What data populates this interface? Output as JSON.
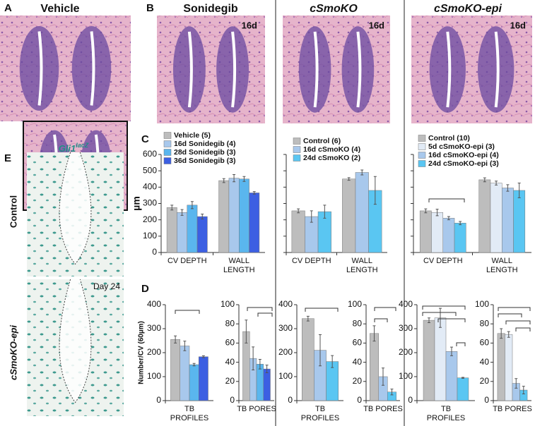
{
  "panels": {
    "a_letter": "A",
    "a_title": "Vehicle",
    "b_letter": "B",
    "b_titles": [
      "Sonidegib",
      "cSmoKO",
      "cSmoKO-epi"
    ],
    "b_days": [
      "16d",
      "16d",
      "16d"
    ],
    "c_letter": "C",
    "d_letter": "D",
    "e_letter": "E",
    "e_title": "Gli1",
    "e_title_sup": "lacZ",
    "e_rows": [
      "Control",
      "cSmoKO-epi"
    ],
    "e_day": "Day 24"
  },
  "chart_data": [
    {
      "type": "bar",
      "ylabel": "µm",
      "categories": [
        "CV DEPTH",
        "WALL LENGTH"
      ],
      "ylim": [
        0,
        600
      ],
      "yticks": [
        0,
        100,
        200,
        300,
        400,
        500,
        600
      ],
      "series": [
        {
          "name": "Vehicle (5)",
          "color": "#bdbdbd",
          "values": [
            275,
            440
          ],
          "errors": [
            15,
            12
          ]
        },
        {
          "name": "16d Sonidegib (4)",
          "color": "#a8c8ec",
          "values": [
            245,
            455
          ],
          "errors": [
            18,
            22
          ]
        },
        {
          "name": "28d Sonidegib (3)",
          "color": "#5ab6ee",
          "values": [
            290,
            450
          ],
          "errors": [
            22,
            15
          ]
        },
        {
          "name": "36d Sonidegib (3)",
          "color": "#3c5fe2",
          "values": [
            220,
            365
          ],
          "errors": [
            15,
            8
          ]
        }
      ]
    },
    {
      "type": "bar",
      "categories": [
        "CV DEPTH",
        "WALL LENGTH"
      ],
      "ylim": [
        0,
        600
      ],
      "yticks": [
        0,
        100,
        200,
        300,
        400,
        500,
        600
      ],
      "series": [
        {
          "name": "Control (6)",
          "color": "#bdbdbd",
          "values": [
            255,
            450
          ],
          "errors": [
            12,
            8
          ]
        },
        {
          "name": "16d cSmoKO (4)",
          "color": "#a8c8ec",
          "values": [
            220,
            490
          ],
          "errors": [
            35,
            15
          ]
        },
        {
          "name": "24d cSmoKO (2)",
          "color": "#5ac6f2",
          "values": [
            250,
            380
          ],
          "errors": [
            40,
            85
          ]
        }
      ]
    },
    {
      "type": "bar",
      "categories": [
        "CV DEPTH",
        "WALL LENGTH"
      ],
      "ylim": [
        0,
        600
      ],
      "yticks": [
        0,
        100,
        200,
        300,
        400,
        500,
        600
      ],
      "series": [
        {
          "name": "Control (10)",
          "color": "#bdbdbd",
          "values": [
            255,
            445
          ],
          "errors": [
            12,
            12
          ]
        },
        {
          "name": "5d cSmoKO-epi (3)",
          "color": "#e2ebf6",
          "values": [
            245,
            425
          ],
          "errors": [
            20,
            12
          ]
        },
        {
          "name": "16d cSmoKO-epi (4)",
          "color": "#a8c8ec",
          "values": [
            210,
            395
          ],
          "errors": [
            10,
            20
          ]
        },
        {
          "name": "24d cSmoKO-epi (3)",
          "color": "#5ac6f2",
          "values": [
            180,
            380
          ],
          "errors": [
            10,
            45
          ]
        }
      ]
    },
    {
      "type": "bar",
      "ylabel": "Number/CV (60µm)",
      "categories": [
        "TB PROFILES"
      ],
      "ylim": [
        0,
        400
      ],
      "yticks": [
        0,
        100,
        200,
        300,
        400
      ],
      "series": [
        {
          "color": "#bdbdbd",
          "values": [
            255
          ],
          "errors": [
            15
          ]
        },
        {
          "color": "#a8c8ec",
          "values": [
            228
          ],
          "errors": [
            20
          ]
        },
        {
          "color": "#5ab6ee",
          "values": [
            150
          ],
          "errors": [
            5
          ]
        },
        {
          "color": "#3c5fe2",
          "values": [
            183
          ],
          "errors": [
            4
          ]
        }
      ]
    },
    {
      "type": "bar",
      "categories": [
        "TB PORES"
      ],
      "ylim": [
        0,
        100
      ],
      "yticks": [
        0,
        20,
        40,
        60,
        80,
        100
      ],
      "series": [
        {
          "color": "#bdbdbd",
          "values": [
            72
          ],
          "errors": [
            12
          ]
        },
        {
          "color": "#a8c8ec",
          "values": [
            44
          ],
          "errors": [
            12
          ]
        },
        {
          "color": "#5ab6ee",
          "values": [
            38
          ],
          "errors": [
            5
          ]
        },
        {
          "color": "#3c5fe2",
          "values": [
            33
          ],
          "errors": [
            4
          ]
        }
      ]
    },
    {
      "type": "bar",
      "categories": [
        "TB PROFILES"
      ],
      "ylim": [
        0,
        400
      ],
      "yticks": [
        0,
        100,
        200,
        300,
        400
      ],
      "series": [
        {
          "color": "#bdbdbd",
          "values": [
            342
          ],
          "errors": [
            10
          ]
        },
        {
          "color": "#a8c8ec",
          "values": [
            210
          ],
          "errors": [
            65
          ]
        },
        {
          "color": "#5ac6f2",
          "values": [
            163
          ],
          "errors": [
            25
          ]
        }
      ]
    },
    {
      "type": "bar",
      "categories": [
        "TB PORES"
      ],
      "ylim": [
        0,
        100
      ],
      "yticks": [
        0,
        20,
        40,
        60,
        80,
        100
      ],
      "series": [
        {
          "color": "#bdbdbd",
          "values": [
            70
          ],
          "errors": [
            8
          ]
        },
        {
          "color": "#a8c8ec",
          "values": [
            25
          ],
          "errors": [
            9
          ]
        },
        {
          "color": "#5ac6f2",
          "values": [
            9
          ],
          "errors": [
            3
          ]
        }
      ]
    },
    {
      "type": "bar",
      "categories": [
        "TB PROFILES"
      ],
      "ylim": [
        0,
        400
      ],
      "yticks": [
        0,
        100,
        200,
        300,
        400
      ],
      "series": [
        {
          "color": "#bdbdbd",
          "values": [
            335
          ],
          "errors": [
            10
          ]
        },
        {
          "color": "#e2ebf6",
          "values": [
            345
          ],
          "errors": [
            40
          ]
        },
        {
          "color": "#a8c8ec",
          "values": [
            205
          ],
          "errors": [
            18
          ]
        },
        {
          "color": "#5ac6f2",
          "values": [
            95
          ],
          "errors": [
            2
          ]
        }
      ]
    },
    {
      "type": "bar",
      "categories": [
        "TB PORES"
      ],
      "ylim": [
        0,
        100
      ],
      "yticks": [
        0,
        20,
        40,
        60,
        80,
        100
      ],
      "series": [
        {
          "color": "#bdbdbd",
          "values": [
            70
          ],
          "errors": [
            5
          ]
        },
        {
          "color": "#e2ebf6",
          "values": [
            69
          ],
          "errors": [
            3
          ]
        },
        {
          "color": "#a8c8ec",
          "values": [
            18
          ],
          "errors": [
            5
          ]
        },
        {
          "color": "#5ac6f2",
          "values": [
            11
          ],
          "errors": [
            4
          ]
        }
      ]
    }
  ]
}
